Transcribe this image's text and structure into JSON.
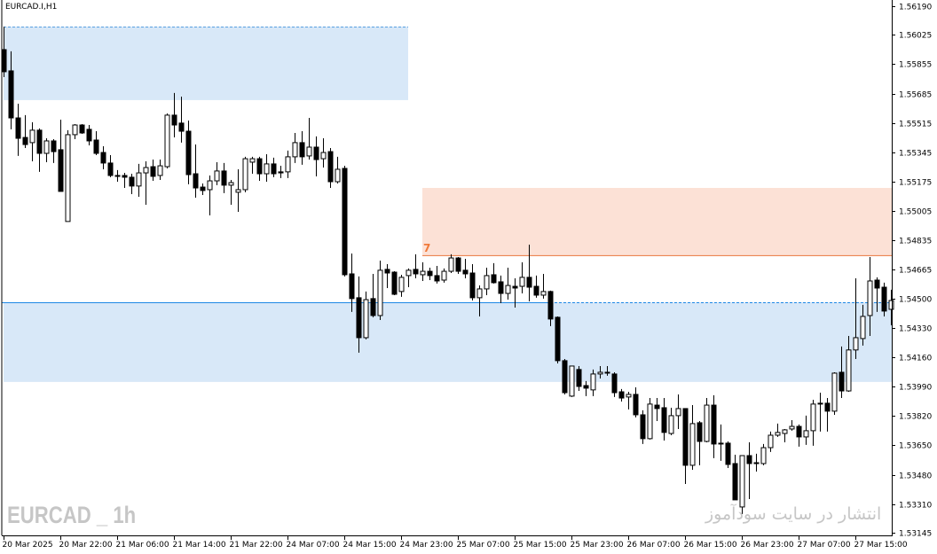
{
  "header": {
    "symbol_timeframe": "EURCAD.I,H1"
  },
  "watermark": {
    "english": "EURCAD _ 1h",
    "persian": "انتشار در سایت سودآموز"
  },
  "colors": {
    "bull_body": "#ffffff",
    "bear_body": "#000000",
    "wick": "#000000",
    "demand_zone": "#d8e8f8",
    "supply_zone": "#fce1d6",
    "price_line": "#1e88e5",
    "supply_line": "#e8743b",
    "zone_label": "#f07a3a"
  },
  "chart_data": {
    "type": "candlestick",
    "price_axis": {
      "ylim": [
        1.53145,
        1.5619
      ],
      "ticks": [
        "1.56190",
        "1.56025",
        "1.55855",
        "1.55685",
        "1.55515",
        "1.55345",
        "1.55175",
        "1.55005",
        "1.54835",
        "1.54665",
        "1.54500",
        "1.54330",
        "1.54160",
        "1.53990",
        "1.53820",
        "1.53650",
        "1.53480",
        "1.53310",
        "1.53145"
      ]
    },
    "time_axis": {
      "labels": [
        "20 Mar 2025",
        "20 Mar 22:00",
        "21 Mar 06:00",
        "21 Mar 14:00",
        "21 Mar 22:00",
        "24 Mar 07:00",
        "24 Mar 15:00",
        "24 Mar 23:00",
        "25 Mar 07:00",
        "25 Mar 15:00",
        "25 Mar 23:00",
        "26 Mar 07:00",
        "26 Mar 15:00",
        "26 Mar 23:00",
        "27 Mar 07:00",
        "27 Mar 15:00"
      ],
      "bars_per_label": 8
    },
    "current_price": 1.54478,
    "zones": [
      {
        "kind": "demand",
        "top": 1.56072,
        "bottom": 1.55647,
        "from_bar": 0,
        "to_bar": 57,
        "label": ""
      },
      {
        "kind": "supply",
        "top": 1.55139,
        "bottom": 1.5475,
        "from_bar": 59,
        "to_bar": 126,
        "label": "7"
      },
      {
        "kind": "demand",
        "top": 1.54478,
        "bottom": 1.54017,
        "from_bar": 0,
        "to_bar": 126,
        "label": ""
      }
    ],
    "ohlc": [
      [
        1.55939,
        1.56072,
        1.5578,
        1.55811
      ],
      [
        1.55816,
        1.55929,
        1.55478,
        1.55544
      ],
      [
        1.55544,
        1.55626,
        1.55324,
        1.55426
      ],
      [
        1.55431,
        1.5556,
        1.5537,
        1.5539
      ],
      [
        1.55401,
        1.55519,
        1.55293,
        1.55473
      ],
      [
        1.55473,
        1.55483,
        1.55232,
        1.55339
      ],
      [
        1.55339,
        1.55426,
        1.55288,
        1.55411
      ],
      [
        1.55411,
        1.55421,
        1.55283,
        1.55349
      ],
      [
        1.5536,
        1.55534,
        1.55119,
        1.55119
      ],
      [
        1.54945,
        1.55473,
        1.54945,
        1.55447
      ],
      [
        1.55447,
        1.55508,
        1.55421,
        1.55503
      ],
      [
        1.55503,
        1.55508,
        1.55452,
        1.55457
      ],
      [
        1.55478,
        1.55503,
        1.55385,
        1.55411
      ],
      [
        1.55416,
        1.55467,
        1.55329,
        1.55339
      ],
      [
        1.55344,
        1.5538,
        1.55247,
        1.55283
      ],
      [
        1.55283,
        1.55329,
        1.55201,
        1.55211
      ],
      [
        1.55211,
        1.55242,
        1.55175,
        1.55206
      ],
      [
        1.55211,
        1.55226,
        1.55139,
        1.55201
      ],
      [
        1.55201,
        1.55221,
        1.55103,
        1.5515
      ],
      [
        1.5515,
        1.55278,
        1.55088,
        1.55226
      ],
      [
        1.55226,
        1.55293,
        1.55042,
        1.55257
      ],
      [
        1.55262,
        1.55303,
        1.5518,
        1.55206
      ],
      [
        1.55211,
        1.55303,
        1.55185,
        1.55267
      ],
      [
        1.55262,
        1.5557,
        1.55252,
        1.5556
      ],
      [
        1.5556,
        1.55688,
        1.55431,
        1.55503
      ],
      [
        1.55514,
        1.55667,
        1.55401,
        1.55467
      ],
      [
        1.55467,
        1.55529,
        1.5516,
        1.55216
      ],
      [
        1.55221,
        1.5539,
        1.55083,
        1.55139
      ],
      [
        1.55144,
        1.55165,
        1.55098,
        1.55124
      ],
      [
        1.55129,
        1.55211,
        1.5498,
        1.5518
      ],
      [
        1.5518,
        1.55288,
        1.55155,
        1.55237
      ],
      [
        1.55237,
        1.55283,
        1.55109,
        1.55155
      ],
      [
        1.55155,
        1.55185,
        1.55042,
        1.5517
      ],
      [
        1.55114,
        1.55247,
        1.55001,
        1.55129
      ],
      [
        1.55129,
        1.55319,
        1.55114,
        1.55308
      ],
      [
        1.55288,
        1.55319,
        1.55221,
        1.55308
      ],
      [
        1.55308,
        1.55319,
        1.5518,
        1.55221
      ],
      [
        1.55221,
        1.55334,
        1.55175,
        1.55278
      ],
      [
        1.55278,
        1.55314,
        1.55201,
        1.55221
      ],
      [
        1.55232,
        1.55267,
        1.55196,
        1.55226
      ],
      [
        1.55232,
        1.55355,
        1.55196,
        1.55319
      ],
      [
        1.55319,
        1.55457,
        1.55283,
        1.55401
      ],
      [
        1.55401,
        1.55467,
        1.55273,
        1.55319
      ],
      [
        1.55324,
        1.55544,
        1.55303,
        1.55375
      ],
      [
        1.55375,
        1.55437,
        1.55206,
        1.55303
      ],
      [
        1.55308,
        1.55426,
        1.55257,
        1.55344
      ],
      [
        1.55349,
        1.5537,
        1.55139,
        1.55175
      ],
      [
        1.55175,
        1.55319,
        1.55165,
        1.55247
      ],
      [
        1.55252,
        1.55267,
        1.54627,
        1.54637
      ],
      [
        1.54642,
        1.5476,
        1.54422,
        1.54499
      ],
      [
        1.54504,
        1.54627,
        1.54186,
        1.54273
      ],
      [
        1.54273,
        1.5454,
        1.54263,
        1.54493
      ],
      [
        1.54499,
        1.54642,
        1.54391,
        1.54401
      ],
      [
        1.54401,
        1.54719,
        1.54375,
        1.54663
      ],
      [
        1.54668,
        1.54698,
        1.5456,
        1.54647
      ],
      [
        1.54652,
        1.54657,
        1.54519,
        1.54524
      ],
      [
        1.5454,
        1.54637,
        1.54509,
        1.54622
      ],
      [
        1.54632,
        1.54673,
        1.54565,
        1.54663
      ],
      [
        1.54668,
        1.54755,
        1.54616,
        1.54642
      ],
      [
        1.54637,
        1.54709,
        1.54601,
        1.54657
      ],
      [
        1.54657,
        1.54678,
        1.54606,
        1.54632
      ],
      [
        1.54632,
        1.54688,
        1.54586,
        1.54601
      ],
      [
        1.54606,
        1.54673,
        1.54591,
        1.54657
      ],
      [
        1.54657,
        1.54755,
        1.54647,
        1.54734
      ],
      [
        1.54734,
        1.54739,
        1.54642,
        1.54657
      ],
      [
        1.54663,
        1.54729,
        1.54616,
        1.54642
      ],
      [
        1.54647,
        1.54698,
        1.54488,
        1.54504
      ],
      [
        1.54504,
        1.54575,
        1.54396,
        1.54555
      ],
      [
        1.54555,
        1.54678,
        1.54519,
        1.54632
      ],
      [
        1.54637,
        1.54704,
        1.54586,
        1.54591
      ],
      [
        1.54596,
        1.54632,
        1.54473,
        1.54529
      ],
      [
        1.54529,
        1.54678,
        1.54493,
        1.54575
      ],
      [
        1.5457,
        1.54616,
        1.54447,
        1.5456
      ],
      [
        1.5457,
        1.54709,
        1.54529,
        1.54622
      ],
      [
        1.54622,
        1.54811,
        1.54483,
        1.54565
      ],
      [
        1.5457,
        1.54632,
        1.54504,
        1.54519
      ],
      [
        1.54519,
        1.54642,
        1.54499,
        1.5454
      ],
      [
        1.5454,
        1.54545,
        1.5434,
        1.54381
      ],
      [
        1.54391,
        1.54396,
        1.54124,
        1.5414
      ],
      [
        1.5414,
        1.5415,
        1.53945,
        1.53955
      ],
      [
        1.53935,
        1.54109,
        1.5393,
        1.54109
      ],
      [
        1.54089,
        1.54109,
        1.53965,
        1.53991
      ],
      [
        1.53996,
        1.54022,
        1.53935,
        1.53981
      ],
      [
        1.53971,
        1.54089,
        1.53935,
        1.54063
      ],
      [
        1.54063,
        1.54109,
        1.54037,
        1.54073
      ],
      [
        1.54073,
        1.54109,
        1.54053,
        1.54068
      ],
      [
        1.54063,
        1.54073,
        1.5393,
        1.53955
      ],
      [
        1.5396,
        1.53976,
        1.53904,
        1.53924
      ],
      [
        1.5393,
        1.5396,
        1.53858,
        1.53945
      ],
      [
        1.53945,
        1.53986,
        1.53812,
        1.53827
      ],
      [
        1.53827,
        1.53853,
        1.53658,
        1.53689
      ],
      [
        1.53689,
        1.53924,
        1.53684,
        1.53889
      ],
      [
        1.53883,
        1.53924,
        1.53791,
        1.53863
      ],
      [
        1.53868,
        1.53924,
        1.53678,
        1.53725
      ],
      [
        1.53719,
        1.53868,
        1.53709,
        1.53822
      ],
      [
        1.53822,
        1.53945,
        1.53745,
        1.53863
      ],
      [
        1.53863,
        1.53863,
        1.53427,
        1.53535
      ],
      [
        1.53535,
        1.53883,
        1.53509,
        1.53776
      ],
      [
        1.53781,
        1.53791,
        1.53535,
        1.53673
      ],
      [
        1.53673,
        1.53924,
        1.53668,
        1.53883
      ],
      [
        1.53883,
        1.5394,
        1.53576,
        1.53658
      ],
      [
        1.53663,
        1.53771,
        1.53561,
        1.53663
      ],
      [
        1.53663,
        1.53673,
        1.53519,
        1.5354
      ],
      [
        1.53545,
        1.53596,
        1.53335,
        1.53335
      ],
      [
        1.53294,
        1.53591,
        1.53253,
        1.53591
      ],
      [
        1.53591,
        1.53668,
        1.5334,
        1.53545
      ],
      [
        1.5355,
        1.53602,
        1.53499,
        1.53545
      ],
      [
        1.53545,
        1.53658,
        1.53535,
        1.53637
      ],
      [
        1.53637,
        1.5373,
        1.53612,
        1.53709
      ],
      [
        1.53709,
        1.53776,
        1.53699,
        1.53725
      ],
      [
        1.53719,
        1.53745,
        1.53668,
        1.5374
      ],
      [
        1.53745,
        1.53796,
        1.53735,
        1.5376
      ],
      [
        1.5376,
        1.53771,
        1.53643,
        1.53699
      ],
      [
        1.53699,
        1.53822,
        1.53653,
        1.53735
      ],
      [
        1.53735,
        1.53914,
        1.53648,
        1.53889
      ],
      [
        1.53894,
        1.53955,
        1.5373,
        1.53889
      ],
      [
        1.53894,
        1.53924,
        1.5373,
        1.53848
      ],
      [
        1.53848,
        1.54073,
        1.53827,
        1.54068
      ],
      [
        1.54073,
        1.54222,
        1.53924,
        1.53965
      ],
      [
        1.53965,
        1.54283,
        1.5396,
        1.54202
      ],
      [
        1.54202,
        1.54616,
        1.5415,
        1.54273
      ],
      [
        1.54268,
        1.54463,
        1.54227,
        1.54396
      ],
      [
        1.54401,
        1.54739,
        1.54283,
        1.54601
      ],
      [
        1.54606,
        1.54622,
        1.54422,
        1.5456
      ],
      [
        1.54565,
        1.54591,
        1.54396,
        1.54427
      ],
      [
        1.54437,
        1.5455,
        1.54345,
        1.54488
      ]
    ]
  }
}
